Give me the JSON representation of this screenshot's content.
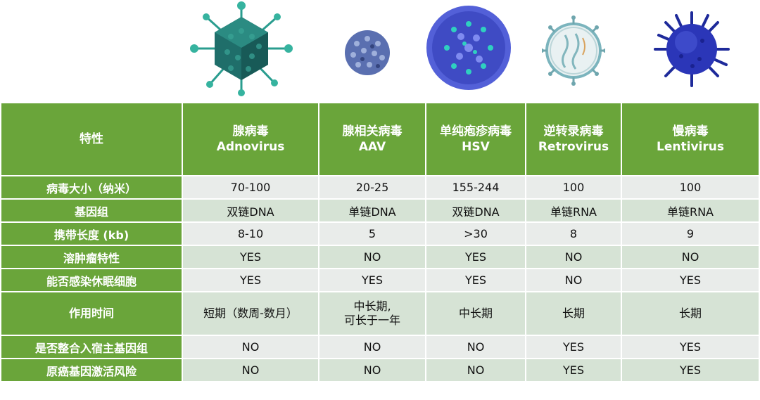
{
  "columns": [
    {
      "name": "腺病毒",
      "en": "Adnovirus"
    },
    {
      "name": "腺相关病毒",
      "en": "AAV"
    },
    {
      "name": "单纯疱疹病毒",
      "en": "HSV"
    },
    {
      "name": "逆转录病毒",
      "en": "Retrovirus"
    },
    {
      "name": "慢病毒",
      "en": "Lentivirus"
    }
  ],
  "header_label": "特性",
  "rows": [
    {
      "label": "病毒大小（纳米）",
      "values": [
        "70-100",
        "20-25",
        "155-244",
        "100",
        "100"
      ]
    },
    {
      "label": "基因组",
      "values": [
        "双链DNA",
        "单链DNA",
        "双链DNA",
        "单链RNA",
        "单链RNA"
      ]
    },
    {
      "label": "携带长度 (kb)",
      "values": [
        "8-10",
        "5",
        ">30",
        "8",
        "9"
      ]
    },
    {
      "label": "溶肿瘤特性",
      "values": [
        "YES",
        "NO",
        "YES",
        "NO",
        "NO"
      ]
    },
    {
      "label": "能否感染休眠细胞",
      "values": [
        "YES",
        "YES",
        "YES",
        "NO",
        "YES"
      ]
    },
    {
      "label": "作用时间",
      "values": [
        "短期（数周-数月）",
        "中长期,|可长于一年",
        "中长期",
        "长期",
        "长期"
      ]
    },
    {
      "label": "是否整合入宿主基因组",
      "values": [
        "NO",
        "NO",
        "NO",
        "YES",
        "YES"
      ]
    },
    {
      "label": "原癌基因激活风险",
      "values": [
        "NO",
        "NO",
        "NO",
        "YES",
        "YES"
      ]
    }
  ],
  "colors": {
    "header_green": "#6aa53a",
    "row_light": "#e9ecea",
    "row_alt": "#d6e3d5"
  },
  "images": [
    "adenovirus-illustration",
    "aav-illustration",
    "hsv-illustration",
    "retrovirus-illustration",
    "lentivirus-illustration"
  ]
}
